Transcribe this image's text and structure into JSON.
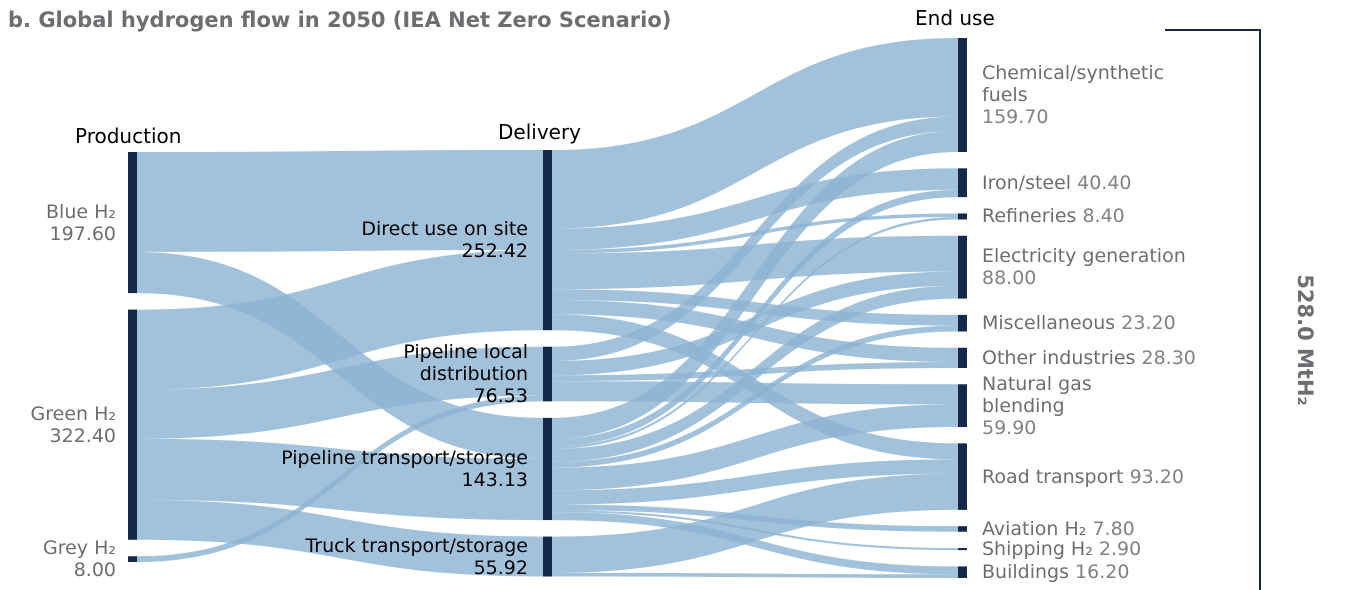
{
  "chart_data": {
    "type": "sankey",
    "title": "b. Global hydrogen flow in 2050 (IEA Net Zero Scenario)",
    "total_label": "528.0 MtH₂",
    "link_color": "#8db3d3",
    "node_color": "#13284a",
    "columns": [
      {
        "title": "Production",
        "nodes": [
          {
            "name": "Blue H₂",
            "value": 197.6,
            "value_label": "197.60"
          },
          {
            "name": "Green H₂",
            "value": 322.4,
            "value_label": "322.40"
          },
          {
            "name": "Grey H₂",
            "value": 8,
            "value_label": "8.00"
          }
        ]
      },
      {
        "title": "Delivery",
        "nodes": [
          {
            "name": "Direct use on site",
            "value": 252.42,
            "value_label": "252.42"
          },
          {
            "name": "Pipeline local distribution",
            "value": 76.53,
            "value_label": "76.53"
          },
          {
            "name": "Pipeline transport/storage",
            "value": 143.13,
            "value_label": "143.13"
          },
          {
            "name": "Truck transport/storage",
            "value": 55.92,
            "value_label": "55.92"
          }
        ]
      },
      {
        "title": "End use",
        "nodes": [
          {
            "name": "Chemical/synthetic fuels",
            "value": 159.7,
            "value_label": "159.70"
          },
          {
            "name": "Iron/steel",
            "value": 40.4,
            "value_label": "40.40"
          },
          {
            "name": "Refineries",
            "value": 8.4,
            "value_label": "8.40"
          },
          {
            "name": "Electricity generation",
            "value": 88,
            "value_label": "88.00"
          },
          {
            "name": "Miscellaneous",
            "value": 23.2,
            "value_label": "23.20"
          },
          {
            "name": "Other industries",
            "value": 28.3,
            "value_label": "28.30"
          },
          {
            "name": "Natural gas blending",
            "value": 59.9,
            "value_label": "59.90"
          },
          {
            "name": "Road transport",
            "value": 93.2,
            "value_label": "93.20"
          },
          {
            "name": "Aviation H₂",
            "value": 7.8,
            "value_label": "7.80"
          },
          {
            "name": "Shipping H₂",
            "value": 2.9,
            "value_label": "2.90"
          },
          {
            "name": "Buildings",
            "value": 16.2,
            "value_label": "16.20"
          }
        ]
      }
    ],
    "links": [
      {
        "source": "Blue H₂",
        "target": "Direct use on site",
        "value": 140
      },
      {
        "source": "Blue H₂",
        "target": "Pipeline transport/storage",
        "value": 57.6
      },
      {
        "source": "Green H₂",
        "target": "Direct use on site",
        "value": 112.42
      },
      {
        "source": "Green H₂",
        "target": "Pipeline local distribution",
        "value": 68.53
      },
      {
        "source": "Green H₂",
        "target": "Pipeline transport/storage",
        "value": 85.53
      },
      {
        "source": "Green H₂",
        "target": "Truck transport/storage",
        "value": 55.92
      },
      {
        "source": "Grey H₂",
        "target": "Pipeline local distribution",
        "value": 8
      },
      {
        "source": "Direct use on site",
        "target": "Chemical/synthetic fuels",
        "value": 110
      },
      {
        "source": "Direct use on site",
        "target": "Iron/steel",
        "value": 30
      },
      {
        "source": "Direct use on site",
        "target": "Refineries",
        "value": 5
      },
      {
        "source": "Direct use on site",
        "target": "Electricity generation",
        "value": 50
      },
      {
        "source": "Direct use on site",
        "target": "Miscellaneous",
        "value": 15
      },
      {
        "source": "Direct use on site",
        "target": "Other industries",
        "value": 20
      },
      {
        "source": "Direct use on site",
        "target": "Road transport",
        "value": 22.42
      },
      {
        "source": "Pipeline local distribution",
        "target": "Chemical/synthetic fuels",
        "value": 20
      },
      {
        "source": "Pipeline local distribution",
        "target": "Electricity generation",
        "value": 20
      },
      {
        "source": "Pipeline local distribution",
        "target": "Other industries",
        "value": 8.3
      },
      {
        "source": "Pipeline local distribution",
        "target": "Natural gas blending",
        "value": 28.23
      },
      {
        "source": "Pipeline transport/storage",
        "target": "Chemical/synthetic fuels",
        "value": 29.7
      },
      {
        "source": "Pipeline transport/storage",
        "target": "Iron/steel",
        "value": 10.4
      },
      {
        "source": "Pipeline transport/storage",
        "target": "Refineries",
        "value": 3.4
      },
      {
        "source": "Pipeline transport/storage",
        "target": "Electricity generation",
        "value": 18
      },
      {
        "source": "Pipeline transport/storage",
        "target": "Miscellaneous",
        "value": 8.2
      },
      {
        "source": "Pipeline transport/storage",
        "target": "Natural gas blending",
        "value": 31.67
      },
      {
        "source": "Pipeline transport/storage",
        "target": "Road transport",
        "value": 20
      },
      {
        "source": "Pipeline transport/storage",
        "target": "Aviation H₂",
        "value": 7.8
      },
      {
        "source": "Pipeline transport/storage",
        "target": "Shipping H₂",
        "value": 2.9
      },
      {
        "source": "Pipeline transport/storage",
        "target": "Buildings",
        "value": 11.06
      },
      {
        "source": "Truck transport/storage",
        "target": "Road transport",
        "value": 50.78
      },
      {
        "source": "Truck transport/storage",
        "target": "Buildings",
        "value": 5.14
      }
    ]
  }
}
